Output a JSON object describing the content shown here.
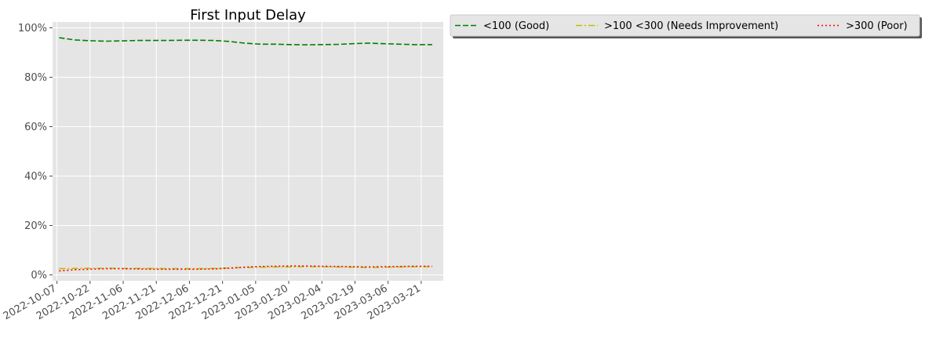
{
  "chart_data": {
    "type": "line",
    "title": "First Input Delay",
    "xlabel": "",
    "ylabel": "",
    "x_tick_labels": [
      "2022-10-07",
      "2022-10-22",
      "2022-11-06",
      "2022-11-21",
      "2022-12-06",
      "2022-12-21",
      "2023-01-05",
      "2023-01-20",
      "2023-02-04",
      "2023-02-19",
      "2023-03-06",
      "2023-03-21"
    ],
    "y_tick_labels": [
      "0%",
      "20%",
      "40%",
      "60%",
      "80%",
      "100%"
    ],
    "ylim": [
      0,
      100
    ],
    "xlim": [
      "2022-10-05",
      "2023-03-31"
    ],
    "grid": true,
    "legend_position": "outside-right-top",
    "x": [
      "2022-10-08",
      "2022-10-15",
      "2022-10-22",
      "2022-10-29",
      "2022-11-05",
      "2022-11-12",
      "2022-11-19",
      "2022-11-26",
      "2022-12-03",
      "2022-12-10",
      "2022-12-17",
      "2022-12-24",
      "2022-12-31",
      "2023-01-07",
      "2023-01-14",
      "2023-01-21",
      "2023-01-28",
      "2023-02-04",
      "2023-02-11",
      "2023-02-18",
      "2023-02-25",
      "2023-03-04",
      "2023-03-11",
      "2023-03-18",
      "2023-03-26"
    ],
    "series": [
      {
        "name": "<100 (Good)",
        "color": "#008000",
        "dash": "dashed",
        "values": [
          96.0,
          95.1,
          94.8,
          94.6,
          94.7,
          94.9,
          94.9,
          94.9,
          95.0,
          95.0,
          94.9,
          94.5,
          93.8,
          93.4,
          93.4,
          93.2,
          93.1,
          93.2,
          93.3,
          93.6,
          93.8,
          93.6,
          93.4,
          93.2,
          93.2
        ]
      },
      {
        "name": ">100  <300 (Needs Improvement)",
        "color": "#bfbf00",
        "dash": "dashdot",
        "values": [
          2.5,
          2.6,
          2.7,
          2.7,
          2.6,
          2.6,
          2.6,
          2.5,
          2.5,
          2.5,
          2.6,
          2.8,
          3.0,
          3.1,
          3.2,
          3.2,
          3.3,
          3.3,
          3.2,
          3.1,
          3.0,
          3.1,
          3.2,
          3.3,
          3.3
        ]
      },
      {
        "name": ">300 (Poor)",
        "color": "#ff0000",
        "dash": "dotted",
        "values": [
          1.6,
          2.1,
          2.3,
          2.5,
          2.5,
          2.4,
          2.3,
          2.3,
          2.3,
          2.3,
          2.4,
          2.7,
          3.1,
          3.4,
          3.5,
          3.6,
          3.6,
          3.5,
          3.4,
          3.3,
          3.2,
          3.3,
          3.4,
          3.5,
          3.5
        ]
      }
    ]
  }
}
